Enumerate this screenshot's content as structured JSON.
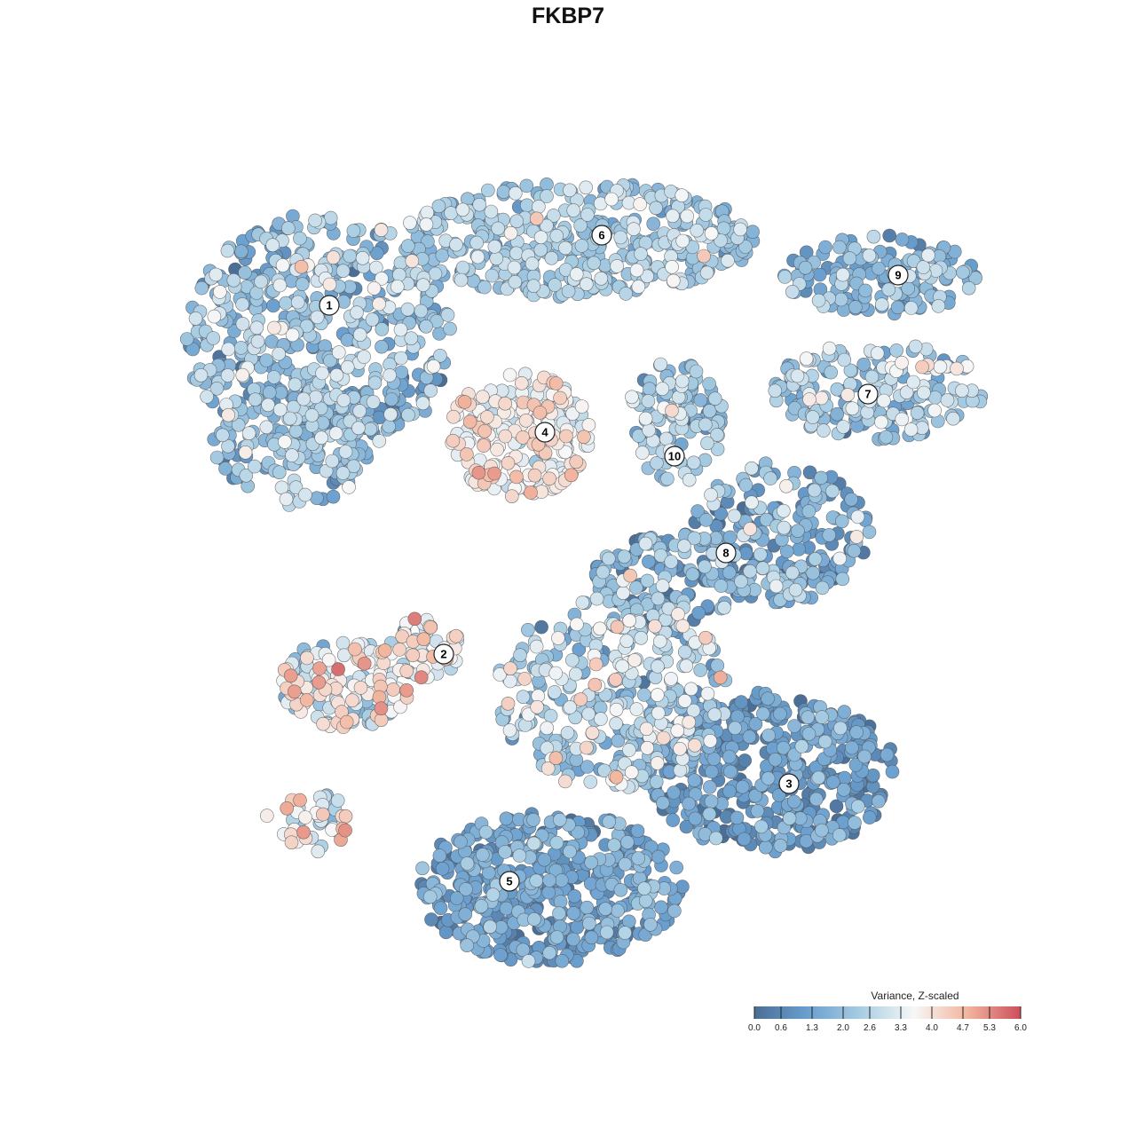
{
  "chart_data": {
    "type": "scatter",
    "title": "FKBP7",
    "color_scale": {
      "title": "Variance, Z-scaled",
      "min": 0.0,
      "max": 6.0,
      "ticks": [
        "0.0",
        "0.6",
        "1.3",
        "2.0",
        "2.6",
        "3.3",
        "4.0",
        "4.7",
        "5.3",
        "6.0"
      ],
      "colors": [
        "#4a6e96",
        "#6a9fcf",
        "#a8cde3",
        "#f7f7f7",
        "#f2b59e",
        "#cc4f5c"
      ]
    },
    "clusters": [
      {
        "label": "1",
        "mean_value": 2.0,
        "spread": 0.8
      },
      {
        "label": "2",
        "mean_value": 3.3,
        "spread": 1.0
      },
      {
        "label": "3",
        "mean_value": 1.0,
        "spread": 0.6
      },
      {
        "label": "4",
        "mean_value": 3.6,
        "spread": 0.6
      },
      {
        "label": "5",
        "mean_value": 1.3,
        "spread": 0.6
      },
      {
        "label": "6",
        "mean_value": 2.3,
        "spread": 0.6
      },
      {
        "label": "7",
        "mean_value": 2.4,
        "spread": 0.8
      },
      {
        "label": "8",
        "mean_value": 1.5,
        "spread": 0.9
      },
      {
        "label": "9",
        "mean_value": 1.8,
        "spread": 0.6
      },
      {
        "label": "10",
        "mean_value": 2.2,
        "spread": 0.7
      }
    ]
  }
}
